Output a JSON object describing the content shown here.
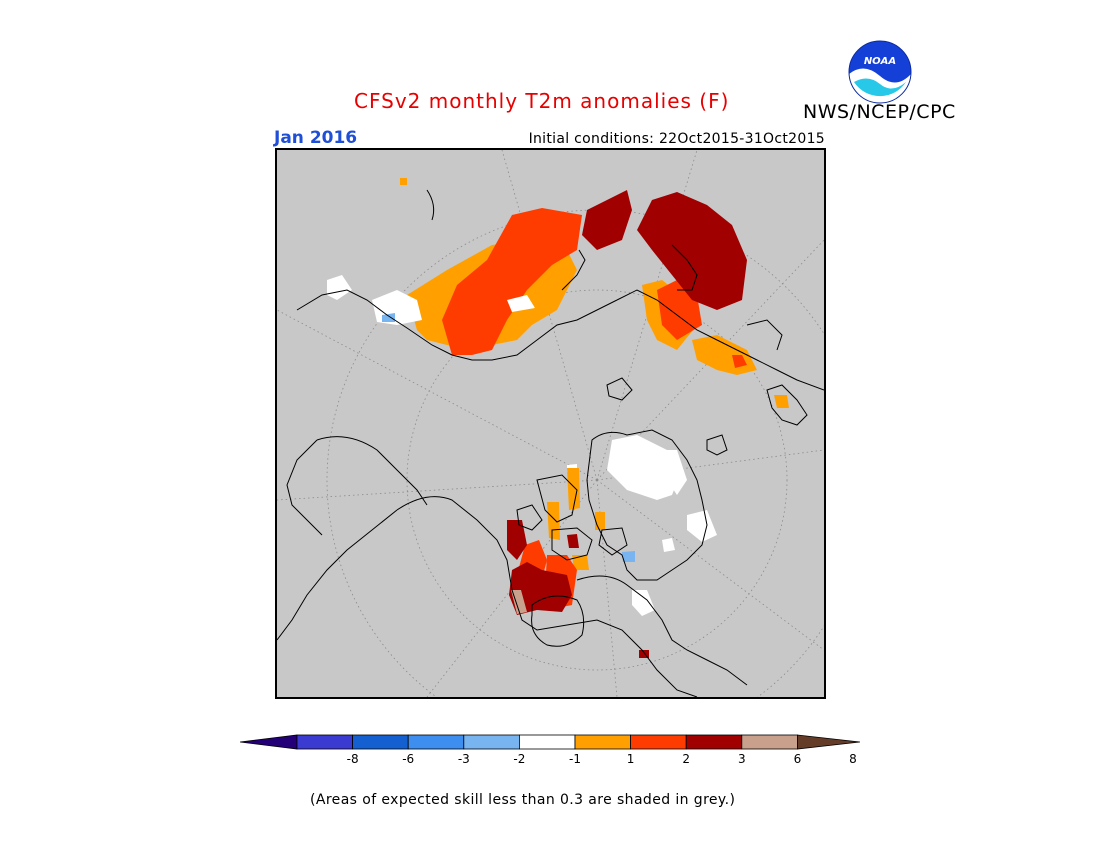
{
  "header": {
    "title": "CFSv2 monthly T2m anomalies (F)",
    "agency": "NWS/NCEP/CPC",
    "month": "Jan 2016",
    "initial_conditions": "Initial conditions: 22Oct2015-31Oct2015"
  },
  "logo": {
    "name": "noaa-logo",
    "text": "NOAA"
  },
  "map": {
    "projection": "north polar stereographic",
    "background_color": "#c8c8c8",
    "description_regions": [
      "Eurasia",
      "North America",
      "Arctic Ocean",
      "Greenland"
    ]
  },
  "colorbar": {
    "colors": [
      "#230078",
      "#3b3bd1",
      "#1560d1",
      "#3e8ef0",
      "#78b4f0",
      "#ffffff",
      "#ffa000",
      "#ff3c00",
      "#a00000",
      "#c8a08c",
      "#643c28"
    ],
    "labels": [
      "-8",
      "-6",
      "-3",
      "-2",
      "-1",
      "1",
      "2",
      "3",
      "6",
      "8"
    ]
  },
  "footnote": "(Areas of expected skill less than 0.3 are shaded in grey.)"
}
